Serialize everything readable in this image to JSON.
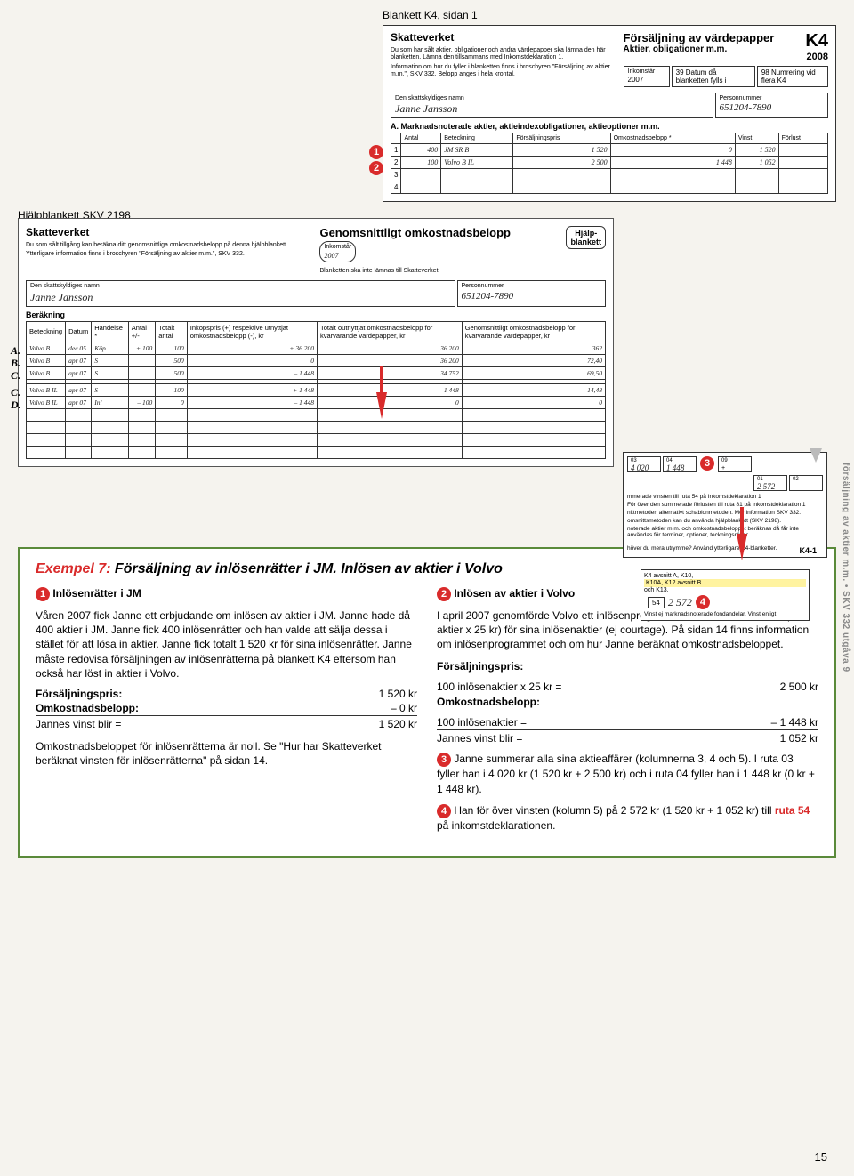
{
  "labels": {
    "k4_title_line": "Blankett K4, sidan 1",
    "hjälp_title_line": "Hjälpblankett SKV 2198",
    "side_text": "försäljning av aktier m.m. • SKV 332 utgåva 9",
    "page_num": "15"
  },
  "k4": {
    "agency": "Skatteverket",
    "form_title": "Försäljning av värdepapper",
    "form_sub": "Aktier, obligationer m.m.",
    "tag": "K4",
    "year": "2008",
    "intro": "Du som har sålt aktier, obligationer och andra värdepapper ska lämna den här blanketten. Lämna den tillsammans med Inkomstdeklaration 1.",
    "intro2": "Information om hur du fyller i blanketten finns i broschyren \"Försäljning av aktier m.m.\", SKV 332. Belopp anges i hela krontal.",
    "inkomstar_lbl": "Inkomstår",
    "inkomstar_val": "2007",
    "box39": "39 Datum då blanketten fylls i",
    "box98": "98 Numrering vid flera K4",
    "name_lbl": "Den skattskyldiges namn",
    "name_val": "Janne Jansson",
    "pnr_lbl": "Personnummer",
    "pnr_val": "651204-7890",
    "sectionA": "A. Marknadsnoterade aktier, aktieindexobligationer, aktieoptioner m.m.",
    "cols": [
      "Antal",
      "Beteckning",
      "Försäljningspris",
      "Omkostnadsbelopp *",
      "Vinst",
      "Förlust"
    ],
    "rows": [
      {
        "n": "1",
        "antal": "400",
        "bet": "JM SR B",
        "pris": "1 520",
        "omk": "0",
        "vinst": "1 520",
        "forl": ""
      },
      {
        "n": "2",
        "antal": "100",
        "bet": "Volvo B IL",
        "pris": "2 500",
        "omk": "1 448",
        "vinst": "1 052",
        "forl": ""
      }
    ]
  },
  "hjälp": {
    "agency": "Skatteverket",
    "title": "Genomsnittligt omkostnadsbelopp",
    "badge": "Hjälp-\nblankett",
    "inkomstar_lbl": "Inkomstår",
    "inkomstar_val": "2007",
    "intro": "Du som sålt tillgång kan beräkna ditt genomsnittliga omkostnadsbelopp på denna hjälpblankett.",
    "intro2": "Ytterligare information finns i broschyren \"Försäljning av aktier m.m.\", SKV 332.",
    "note": "Blanketten ska inte lämnas till Skatteverket",
    "name_lbl": "Den skattskyldiges namn",
    "name_val": "Janne Jansson",
    "pnr_lbl": "Personnummer",
    "pnr_val": "651204-7890",
    "section": "Beräkning",
    "cols": [
      "Beteckning",
      "Datum",
      "Händelse *",
      "Antal +/-",
      "Totalt antal",
      "Inköpspris (+) respektive utnyttjat omkostnadsbelopp (-), kr",
      "Totalt outnyttjat omkostnadsbelopp för kvarvarande värdepapper, kr",
      "Genomsnittligt omkostnadsbelopp för kvarvarande värdepapper, kr"
    ],
    "rows": [
      {
        "lab": "A.",
        "bet": "Volvo B",
        "dat": "dec 05",
        "h": "Köp",
        "ant": "+ 100",
        "tot": "100",
        "ink": "+ 36 200",
        "totomk": "36 200",
        "gen": "362"
      },
      {
        "lab": "B.",
        "bet": "Volvo B",
        "dat": "apr 07",
        "h": "S",
        "ant": "",
        "tot": "500",
        "ink": "0",
        "totomk": "36 200",
        "gen": "72,40"
      },
      {
        "lab": "C.",
        "bet": "Volvo B",
        "dat": "apr 07",
        "h": "S",
        "ant": "",
        "tot": "500",
        "ink": "– 1 448",
        "totomk": "34 752",
        "gen": "69,50"
      },
      {
        "lab": "",
        "bet": "",
        "dat": "",
        "h": "",
        "ant": "",
        "tot": "",
        "ink": "",
        "totomk": "",
        "gen": ""
      },
      {
        "lab": "C.",
        "bet": "Volvo B IL",
        "dat": "apr 07",
        "h": "S",
        "ant": "",
        "tot": "100",
        "ink": "+ 1 448",
        "totomk": "1 448",
        "gen": "14,48"
      },
      {
        "lab": "D.",
        "bet": "Volvo B IL",
        "dat": "apr 07",
        "h": "Inl",
        "ant": "– 100",
        "tot": "0",
        "ink": "– 1 448",
        "totomk": "0",
        "gen": "0"
      }
    ]
  },
  "sumstrip": {
    "c03_lbl": "03",
    "c03_val": "4 020",
    "c04_lbl": "04",
    "c04_val": "1 448",
    "c09_lbl": "09",
    "c01_lbl": "01",
    "c01_val": "2 572",
    "c02_lbl": "02",
    "line1": "mmerade vinsten till ruta 54 på Inkomstdeklaration 1",
    "line2": "För över den summerade förlusten till ruta 81 på Inkomstdeklaration 1",
    "line3": "nittmetoden alternativt schablonmetoden. Mer information SKV 332.",
    "line4": "omsnittsmetoden kan du använda hjälpblankett (SKV 2198).",
    "line5": "noterade aktier m.m. och omkostnadsbeloppet beräknas då får inte användas för terminer, optioner, teckningsrätter.",
    "footer": "höver du mera utrymme? Använd ytterligare K4-blanketter.",
    "k41": "K4-1"
  },
  "yellowbox": {
    "t1": "K4 avsnitt A, K10,",
    "t2": "K10A, K12 avsnitt B",
    "t3": "och K13.",
    "t4": "Vinst ej marknadsnoterade fondandelar. Vinst enligt",
    "box_lbl": "54",
    "box_val": "2 572"
  },
  "example": {
    "lead": "Exempel 7:",
    "title": " Försäljning av inlösenrätter i JM. Inlösen av aktier i Volvo",
    "left": {
      "h": "Inlösenrätter i JM",
      "p1": "Våren 2007 fick Janne ett erbjudande om inlösen av aktier i JM. Janne hade då 400 aktier i JM. Janne fick 400 inlösenrätter och han valde att sälja dessa i stället för att lösa in aktier. Janne fick totalt 1 520 kr för sina inlösenrätter. Janne måste redovisa försäljningen av inlösenrätterna på blankett K4 eftersom han också har löst in aktier i Volvo.",
      "k1_l": "Försäljningspris:",
      "k1_v": "1 520 kr",
      "k2_l": "Omkostnadsbelopp:",
      "k2_v": "–      0 kr",
      "k3_l": "Jannes vinst blir =",
      "k3_v": "1 520 kr",
      "p2": "Omkostnadsbeloppet för inlösenrätterna är noll. Se \"Hur har Skatteverket beräknat vinsten för inlösenrätterna\" på sidan 14."
    },
    "right": {
      "h": "Inlösen av aktier i Volvo",
      "p1": "I april 2007 genomförde Volvo ett inlösenprogram och Janne fick 2 500 kr (100 aktier x 25 kr) för sina inlösenaktier (ej courtage). På sidan 14 finns information om inlösenprogrammet och om hur Janne beräknat omkostnadsbeloppet.",
      "k1_l": "Försäljningspris:",
      "k1_s": "100 inlösenaktier x 25 kr =",
      "k1_v": "2 500 kr",
      "k2_l": "Omkostnadsbelopp:",
      "k2_s": "100 inlösenaktier =",
      "k2_v": "– 1 448 kr",
      "k3_l": "Jannes vinst blir =",
      "k3_v": "1 052 kr",
      "p3": "Janne summerar alla sina aktieaffärer (kolumnerna 3, 4 och 5). I ruta 03 fyller han i 4 020 kr (1 520 kr + 2 500 kr) och i ruta 04 fyller han i 1 448 kr (0 kr + 1 448 kr).",
      "p4_a": "Han för över vinsten (kolumn 5) på 2 572 kr (1 520 kr + 1 052 kr) till ",
      "p4_ruta": "ruta 54",
      "p4_b": " på inkomstdeklarationen."
    }
  },
  "colors": {
    "red": "#d92b2b",
    "green_border": "#5a8a3a",
    "highlight": "#fff3a0",
    "bg": "#f5f3ee"
  }
}
